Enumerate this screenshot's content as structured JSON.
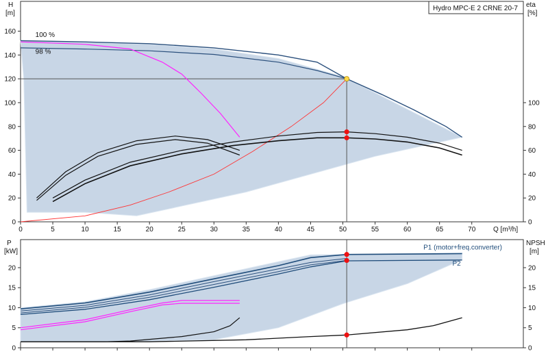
{
  "colors": {
    "envelope": "#c8d6e6",
    "envelope_edge": "#dbe6f1",
    "qh_curve": "#2a4f7c",
    "pump_curve_dark": "#1f4c7a",
    "magenta": "#ff22ff",
    "red_system": "#ff3333",
    "efficiency": "#111111",
    "point": "#ee1111",
    "duty_point": "#ffd84a",
    "grid": "#555555",
    "frame": "#333333"
  },
  "chart_data": [
    {
      "type": "line",
      "title": "Hydro MPC-E 2 CRNE 20-7",
      "xlabel": "Q [m³/h]",
      "ylabel_left": "H\n[m]",
      "ylabel_right": "eta\n[%]",
      "xlim": [
        0,
        78
      ],
      "xticks": [
        0,
        5,
        10,
        15,
        20,
        25,
        30,
        35,
        40,
        45,
        50,
        55,
        60,
        65,
        70
      ],
      "ylim_left": [
        0,
        185
      ],
      "yticks_left": [
        0,
        20,
        40,
        60,
        80,
        100,
        120,
        140,
        160
      ],
      "ylim_right": [
        0,
        185
      ],
      "yticks_right": [
        0,
        20,
        40,
        60,
        80,
        100
      ],
      "annotations": [
        {
          "text": "100 %",
          "x": 2.3,
          "y": 155
        },
        {
          "text": "98 %",
          "x": 2.3,
          "y": 141
        }
      ],
      "envelope": [
        [
          0,
          152
        ],
        [
          10,
          150.5
        ],
        [
          20,
          149
        ],
        [
          30,
          145
        ],
        [
          40,
          137
        ],
        [
          50,
          122
        ],
        [
          68.5,
          71
        ],
        [
          55,
          55
        ],
        [
          35,
          25
        ],
        [
          18,
          5
        ],
        [
          10,
          8
        ],
        [
          1,
          8
        ],
        [
          0.5,
          120
        ]
      ],
      "series": [
        {
          "name": "",
          "role": "qh_100",
          "points": [
            [
              0,
              152
            ],
            [
              10,
              151
            ],
            [
              20,
              149.5
            ],
            [
              30,
              146
            ],
            [
              40,
              140
            ],
            [
              46,
              134
            ],
            [
              50.6,
              120
            ],
            [
              56,
              107
            ],
            [
              61,
              94
            ],
            [
              66,
              80
            ],
            [
              68.5,
              71
            ]
          ]
        },
        {
          "name": "",
          "role": "qh_98",
          "points": [
            [
              0,
              146
            ],
            [
              10,
              145
            ],
            [
              20,
              143.5
            ],
            [
              30,
              140.5
            ],
            [
              40,
              134
            ],
            [
              46,
              127
            ],
            [
              50.6,
              120
            ]
          ]
        },
        {
          "name": "",
          "role": "single_pump_h",
          "points": [
            [
              0,
              151
            ],
            [
              10,
              149
            ],
            [
              17,
              145
            ],
            [
              22,
              134
            ],
            [
              25,
              124
            ],
            [
              28,
              108
            ],
            [
              31,
              91
            ],
            [
              34,
              71
            ]
          ]
        },
        {
          "name": "",
          "role": "system_curve",
          "points": [
            [
              0,
              0
            ],
            [
              10,
              5
            ],
            [
              17,
              14
            ],
            [
              23,
              25
            ],
            [
              30,
              40
            ],
            [
              36,
              59
            ],
            [
              42,
              80
            ],
            [
              47,
              100
            ],
            [
              50.6,
              120
            ]
          ]
        },
        {
          "name": "",
          "role": "eta_a",
          "points": [
            [
              2.5,
              20
            ],
            [
              7,
              42
            ],
            [
              12,
              58
            ],
            [
              18,
              68
            ],
            [
              24,
              72
            ],
            [
              29,
              69
            ],
            [
              34,
              60
            ]
          ]
        },
        {
          "name": "",
          "role": "eta_b",
          "points": [
            [
              2.5,
              18
            ],
            [
              7,
              39
            ],
            [
              12,
              55
            ],
            [
              18,
              65
            ],
            [
              24,
              69
            ],
            [
              29,
              66
            ],
            [
              34,
              56
            ]
          ]
        },
        {
          "name": "",
          "role": "eta_c",
          "points": [
            [
              5,
              20
            ],
            [
              10,
              35
            ],
            [
              17,
              50
            ],
            [
              25,
              60
            ],
            [
              33,
              67
            ],
            [
              40,
              72
            ],
            [
              46,
              75
            ],
            [
              50.6,
              75.5
            ],
            [
              55,
              74
            ],
            [
              60,
              71
            ],
            [
              65,
              66
            ],
            [
              68.5,
              60
            ]
          ]
        },
        {
          "name": "",
          "role": "eta_d",
          "points": [
            [
              5,
              17
            ],
            [
              10,
              32
            ],
            [
              17,
              47
            ],
            [
              25,
              57
            ],
            [
              33,
              64
            ],
            [
              40,
              68
            ],
            [
              46,
              70.5
            ],
            [
              50.6,
              70.5
            ],
            [
              55,
              69.5
            ],
            [
              60,
              67
            ],
            [
              65,
              62
            ],
            [
              68.5,
              56
            ]
          ]
        }
      ],
      "markers": [
        {
          "x": 50.6,
          "y": 120,
          "kind": "duty"
        },
        {
          "x": 50.6,
          "y": 75.5,
          "kind": "point"
        },
        {
          "x": 50.6,
          "y": 70.5,
          "kind": "point"
        }
      ],
      "crosshair": {
        "x": 50.6,
        "y": 120
      }
    },
    {
      "type": "line",
      "xlim": [
        0,
        78
      ],
      "ylabel_left": "P\n[kW]",
      "ylabel_right": "NPSH\n[m]",
      "ylim_left": [
        0,
        27
      ],
      "yticks_left": [
        0,
        5,
        10,
        15,
        20
      ],
      "ylim_right": [
        0,
        27
      ],
      "yticks_right": [
        0,
        5,
        10,
        15,
        20
      ],
      "labels": [
        {
          "text": "P1 (motor+freq.converter)",
          "x": 62.5,
          "y": 24.5
        },
        {
          "text": "P2",
          "x": 67,
          "y": 20.5
        }
      ],
      "envelope": [
        [
          0,
          10
        ],
        [
          10,
          11.5
        ],
        [
          20,
          14.5
        ],
        [
          30,
          18
        ],
        [
          40,
          21.5
        ],
        [
          45,
          23.2
        ],
        [
          68.5,
          23.7
        ],
        [
          68.5,
          22
        ],
        [
          60,
          16
        ],
        [
          50,
          11
        ],
        [
          40,
          5
        ],
        [
          30,
          2
        ],
        [
          15,
          1.5
        ],
        [
          0,
          1.5
        ]
      ],
      "series": [
        {
          "name": "P1",
          "role": "p1",
          "points": [
            [
              0,
              9.7
            ],
            [
              10,
              11.2
            ],
            [
              20,
              13.9
            ],
            [
              30,
              17.2
            ],
            [
              40,
              20.5
            ],
            [
              45,
              22.5
            ],
            [
              50.6,
              23.3
            ],
            [
              68.5,
              23.5
            ]
          ]
        },
        {
          "name": "",
          "role": "p1_b",
          "points": [
            [
              0,
              9.2
            ],
            [
              10,
              10.6
            ],
            [
              20,
              13.2
            ],
            [
              30,
              16.5
            ],
            [
              40,
              19.7
            ],
            [
              45,
              21.3
            ],
            [
              50.6,
              22.3
            ]
          ]
        },
        {
          "name": "",
          "role": "p1_c",
          "points": [
            [
              0,
              8.7
            ],
            [
              10,
              10.1
            ],
            [
              20,
              12.6
            ],
            [
              30,
              15.8
            ],
            [
              40,
              19.0
            ],
            [
              45,
              20.7
            ],
            [
              50.6,
              21.8
            ]
          ]
        },
        {
          "name": "P2",
          "role": "p2",
          "points": [
            [
              0,
              8.3
            ],
            [
              10,
              9.6
            ],
            [
              20,
              12.0
            ],
            [
              30,
              15.1
            ],
            [
              40,
              18.4
            ],
            [
              45,
              20.2
            ],
            [
              50.6,
              21.7
            ],
            [
              68.5,
              21.9
            ]
          ]
        },
        {
          "name": "",
          "role": "single_p1",
          "points": [
            [
              0,
              5
            ],
            [
              10,
              7
            ],
            [
              17,
              9.5
            ],
            [
              22,
              11.2
            ],
            [
              25,
              11.8
            ],
            [
              34,
              11.8
            ]
          ]
        },
        {
          "name": "",
          "role": "single_p2",
          "points": [
            [
              0,
              4.5
            ],
            [
              10,
              6.5
            ],
            [
              17,
              9
            ],
            [
              22,
              10.7
            ],
            [
              25,
              11.1
            ],
            [
              34,
              11.1
            ]
          ]
        },
        {
          "name": "",
          "role": "npsh_single",
          "points": [
            [
              0,
              1.5
            ],
            [
              13,
              1.5
            ],
            [
              17,
              1.7
            ],
            [
              25,
              2.8
            ],
            [
              30,
              4
            ],
            [
              32.5,
              5.5
            ],
            [
              34,
              7.5
            ]
          ]
        },
        {
          "name": "",
          "role": "npsh",
          "points": [
            [
              0,
              1.5
            ],
            [
              20,
              1.5
            ],
            [
              35,
              2
            ],
            [
              45,
              2.8
            ],
            [
              50.6,
              3.2
            ],
            [
              60,
              4.5
            ],
            [
              64,
              5.5
            ],
            [
              68.5,
              7.5
            ]
          ]
        }
      ],
      "markers": [
        {
          "x": 50.6,
          "y": 23.3,
          "kind": "point"
        },
        {
          "x": 50.6,
          "y": 21.8,
          "kind": "point"
        },
        {
          "x": 50.6,
          "y": 3.2,
          "kind": "point"
        }
      ],
      "crosshair": {
        "x": 50.6
      }
    }
  ]
}
